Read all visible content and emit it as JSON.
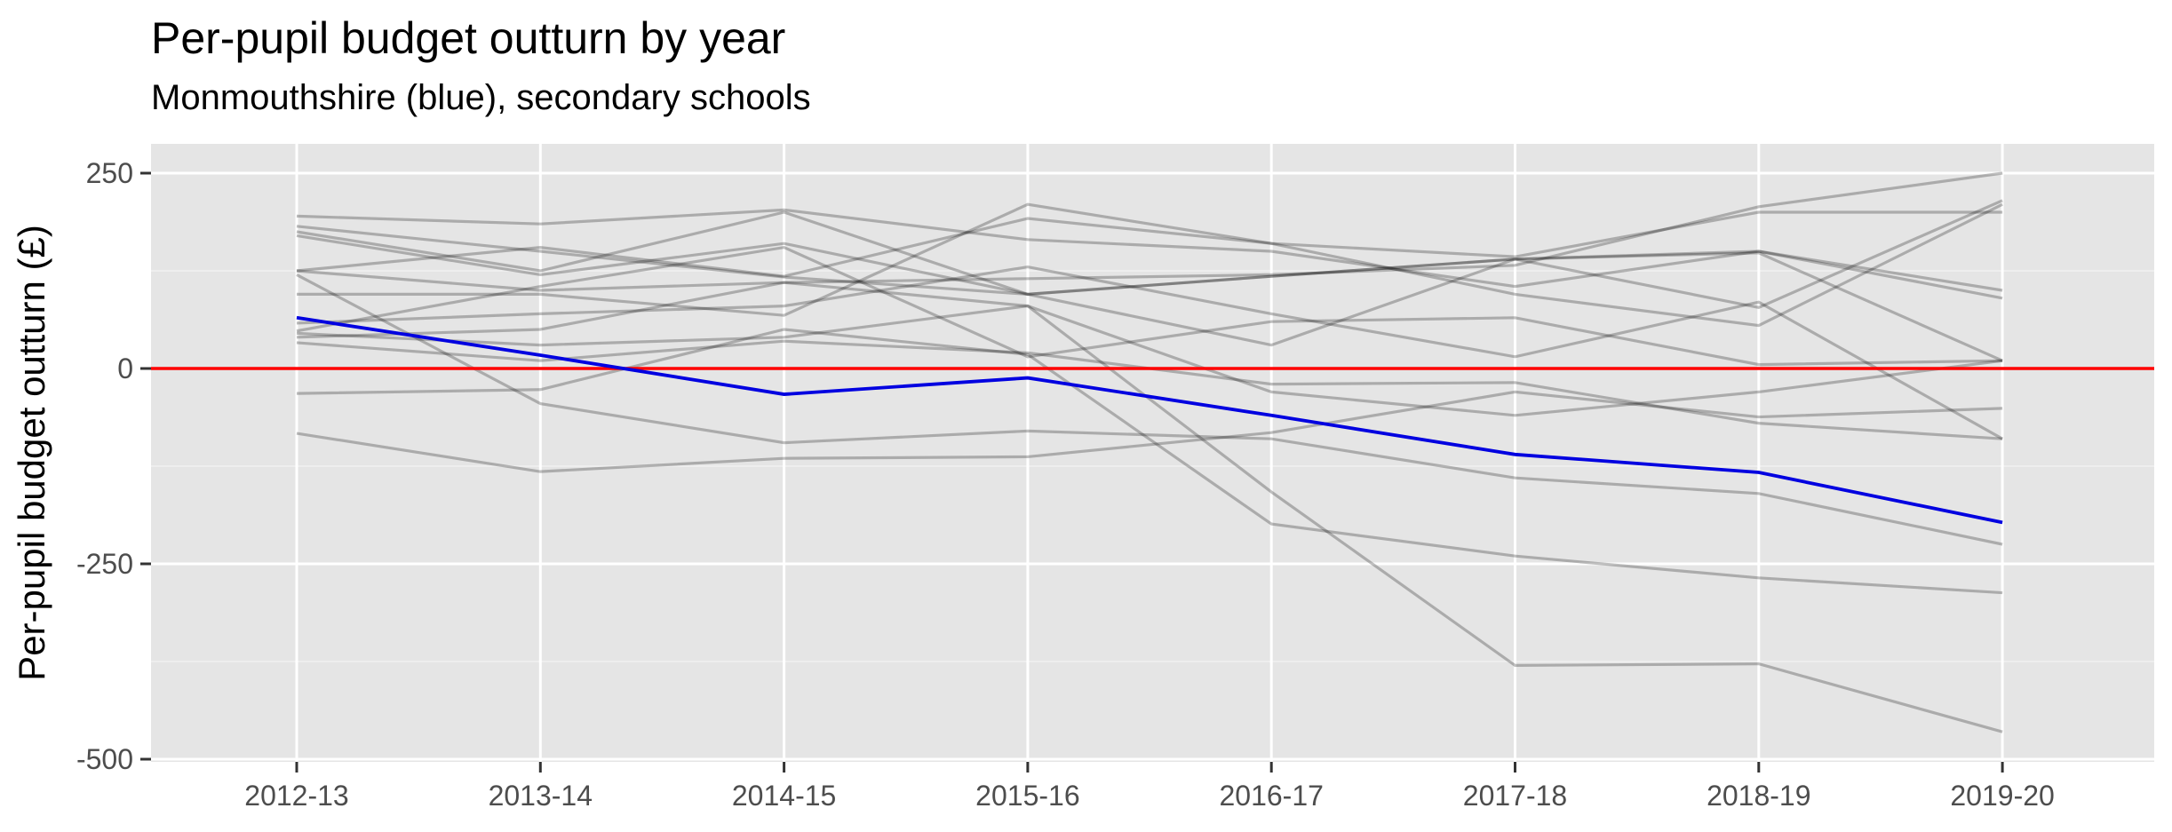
{
  "chart_data": {
    "type": "line",
    "title": "Per-pupil budget outturn by year",
    "subtitle": "Monmouthshire (blue), secondary schools",
    "xlabel": "",
    "ylabel": "Per-pupil budget outturn (£)",
    "categories": [
      "2012-13",
      "2013-14",
      "2014-15",
      "2015-16",
      "2016-17",
      "2017-18",
      "2018-19",
      "2019-20"
    ],
    "ylim": [
      -500,
      280
    ],
    "yticks": [
      250,
      0,
      -250,
      -500
    ],
    "ytick_labels": [
      "250",
      "0",
      "-250",
      "-500"
    ],
    "grid": true,
    "legend": "none",
    "reference_line": {
      "y": 0,
      "color": "#ff0000"
    },
    "highlight": {
      "color": "#0000e0",
      "values": [
        65,
        17,
        -33,
        -12,
        -60,
        -110,
        -133,
        -197
      ]
    },
    "background": {
      "color": "#000000",
      "opacity": 0.25,
      "series": [
        [
          195,
          185,
          203,
          165,
          150,
          105,
          150,
          90
        ],
        [
          182,
          150,
          117,
          95,
          118,
          140,
          148,
          10
        ],
        [
          175,
          125,
          200,
          95,
          118,
          140,
          78,
          215
        ],
        [
          170,
          120,
          160,
          95,
          30,
          140,
          150,
          100
        ],
        [
          125,
          155,
          118,
          192,
          160,
          143,
          200,
          200
        ],
        [
          125,
          100,
          110,
          115,
          120,
          132,
          207,
          250
        ],
        [
          95,
          95,
          68,
          210,
          160,
          95,
          55,
          210
        ],
        [
          48,
          105,
          155,
          15,
          60,
          65,
          5,
          10
        ],
        [
          58,
          70,
          80,
          130,
          70,
          15,
          85,
          -90
        ],
        [
          40,
          50,
          110,
          80,
          -30,
          -60,
          -30,
          10
        ],
        [
          33,
          10,
          35,
          20,
          -20,
          -18,
          -70,
          -90
        ],
        [
          45,
          30,
          40,
          80,
          -158,
          -380,
          -378,
          -465
        ],
        [
          120,
          -45,
          -95,
          -80,
          -90,
          -140,
          -160,
          -225
        ],
        [
          -32,
          -27,
          50,
          18,
          -199,
          -240,
          -268,
          -287
        ],
        [
          -83,
          -132,
          -115,
          -113,
          -82,
          -30,
          -62,
          -51
        ]
      ]
    }
  }
}
